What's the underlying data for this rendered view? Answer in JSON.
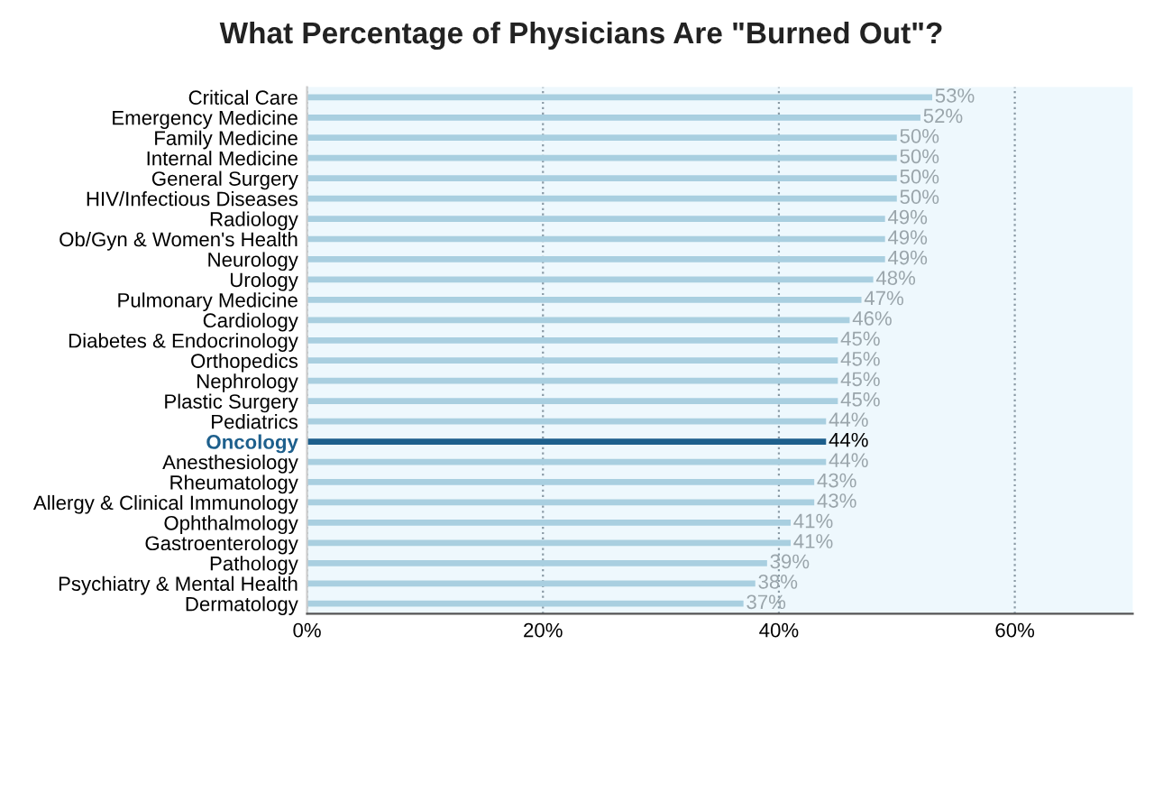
{
  "chart_data": {
    "type": "bar",
    "orientation": "horizontal",
    "title": "What Percentage of Physicians Are \"Burned Out\"?",
    "categories": [
      "Critical Care",
      "Emergency Medicine",
      "Family Medicine",
      "Internal Medicine",
      "General Surgery",
      "HIV/Infectious Diseases",
      "Radiology",
      "Ob/Gyn & Women's Health",
      "Neurology",
      "Urology",
      "Pulmonary Medicine",
      "Cardiology",
      "Diabetes & Endocrinology",
      "Orthopedics",
      "Nephrology",
      "Plastic Surgery",
      "Pediatrics",
      "Oncology",
      "Anesthesiology",
      "Rheumatology",
      "Allergy & Clinical Immunology",
      "Ophthalmology",
      "Gastroenterology",
      "Pathology",
      "Psychiatry & Mental Health",
      "Dermatology"
    ],
    "values": [
      53,
      52,
      50,
      50,
      50,
      50,
      49,
      49,
      49,
      48,
      47,
      46,
      45,
      45,
      45,
      45,
      44,
      44,
      44,
      43,
      43,
      41,
      41,
      39,
      38,
      37
    ],
    "colors": [
      "#a9cfe0",
      "#a9cfe0",
      "#a9cfe0",
      "#a9cfe0",
      "#a9cfe0",
      "#a9cfe0",
      "#a9cfe0",
      "#a9cfe0",
      "#a9cfe0",
      "#a9cfe0",
      "#a9cfe0",
      "#a9cfe0",
      "#a9cfe0",
      "#a9cfe0",
      "#a9cfe0",
      "#a9cfe0",
      "#a9cfe0",
      "#1d5f8c",
      "#a9cfe0",
      "#a9cfe0",
      "#a9cfe0",
      "#a9cfe0",
      "#a9cfe0",
      "#a9cfe0",
      "#a9cfe0",
      "#a9cfe0"
    ],
    "value_labels": [
      "53%",
      "52%",
      "50%",
      "50%",
      "50%",
      "50%",
      "49%",
      "49%",
      "49%",
      "48%",
      "47%",
      "46%",
      "45%",
      "45%",
      "45%",
      "45%",
      "44%",
      "44%",
      "44%",
      "43%",
      "43%",
      "41%",
      "41%",
      "39%",
      "38%",
      "37%"
    ],
    "xlim": [
      0,
      70
    ],
    "xticks": [
      {
        "value": 0,
        "label": "0%"
      },
      {
        "value": 20,
        "label": "20%"
      },
      {
        "value": 40,
        "label": "40%"
      },
      {
        "value": 60,
        "label": "60%"
      }
    ],
    "grid": "x",
    "legend": false
  }
}
